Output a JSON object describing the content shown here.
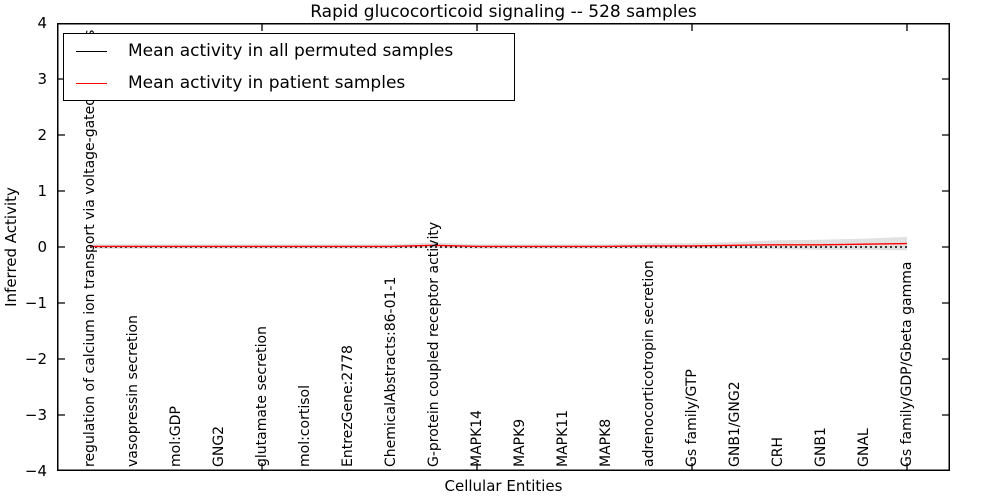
{
  "title": "Rapid glucocorticoid signaling -- 528 samples",
  "axes": {
    "x_label": "Cellular Entities",
    "y_label": "Inferred Activity",
    "y_ticks": [
      "4",
      "3",
      "2",
      "1",
      "0",
      "−1",
      "−2",
      "−3",
      "−4"
    ]
  },
  "legend": {
    "entries": [
      {
        "label": "Mean activity in all permuted samples",
        "color": "#000000"
      },
      {
        "label": "Mean activity in patient samples",
        "color": "#ff0000"
      }
    ]
  },
  "chart_data": {
    "type": "line",
    "title": "Rapid glucocorticoid signaling -- 528 samples",
    "xlabel": "Cellular Entities",
    "ylabel": "Inferred Activity",
    "ylim": [
      -4,
      4
    ],
    "grid": false,
    "legend_position": "upper left",
    "categories": [
      "regulation of calcium ion transport via voltage-gated channels",
      "vasopressin secretion",
      "mol:GDP",
      "GNG2",
      "glutamate secretion",
      "mol:cortisol",
      "EntrezGene:2778",
      "ChemicalAbstracts:86-01-1",
      "G-protein coupled receptor activity",
      "MAPK14",
      "MAPK9",
      "MAPK11",
      "MAPK8",
      "adrenocorticotropin secretion",
      "Gs family/GTP",
      "GNB1/GNG2",
      "CRH",
      "GNB1",
      "GNAL",
      "Gs family/GDP/Gbeta gamma"
    ],
    "series": [
      {
        "name": "Mean activity in all permuted samples",
        "color": "#000000",
        "line_style": "dotted",
        "values": [
          0,
          0,
          0,
          0,
          0,
          0,
          0,
          0,
          0,
          0,
          0,
          0,
          0,
          0,
          0,
          0,
          0,
          0,
          0,
          0
        ]
      },
      {
        "name": "Mean activity in patient samples",
        "color": "#ff0000",
        "line_style": "solid",
        "values": [
          0.01,
          0.01,
          0.01,
          0.01,
          0.01,
          0.01,
          0.01,
          0.01,
          0.03,
          0.01,
          0.01,
          0.01,
          0.01,
          0.02,
          0.02,
          0.03,
          0.04,
          0.04,
          0.05,
          0.06
        ]
      }
    ],
    "uncertainty_band": {
      "color": "#c8c8c8",
      "center_series": "Mean activity in patient samples",
      "half_width": [
        0.04,
        0.04,
        0.04,
        0.04,
        0.04,
        0.04,
        0.04,
        0.04,
        0.05,
        0.04,
        0.04,
        0.04,
        0.04,
        0.05,
        0.05,
        0.06,
        0.08,
        0.09,
        0.1,
        0.12
      ]
    },
    "x_major_tick_indices": [
      4,
      9,
      14,
      19
    ]
  }
}
